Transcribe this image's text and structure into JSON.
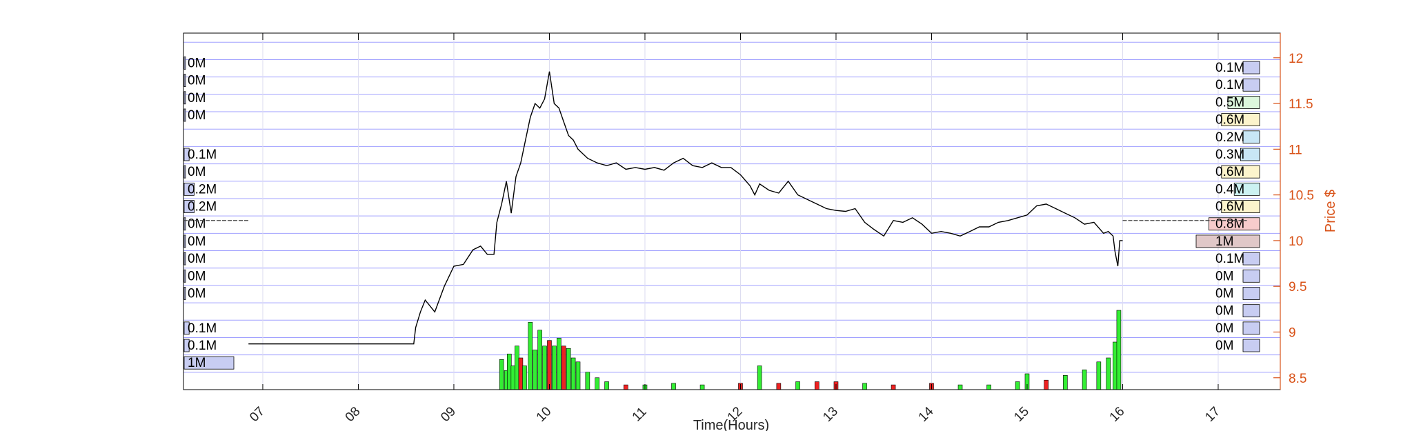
{
  "chart_data": {
    "type": "line",
    "xlabel": "Time(Hours)",
    "ylabel": "Price $",
    "xlim": [
      6.17,
      17.65
    ],
    "ylim": [
      8.37,
      12.27
    ],
    "x_ticks": [
      "07",
      "08",
      "09",
      "10",
      "11",
      "12",
      "13",
      "14",
      "15",
      "16",
      "17"
    ],
    "y_ticks": [
      "8.5",
      "9",
      "9.5",
      "10",
      "10.5",
      "11",
      "11.5",
      "12"
    ],
    "colors": {
      "price_line": "#000000",
      "axis_right": "#d95319",
      "band_lines": "#a0a0ff",
      "grid": "#dcdcf0",
      "volume_up": "#33ee33",
      "volume_down": "#ee2222",
      "profile_default": "#c8cdf2"
    },
    "series": [
      {
        "name": "",
        "x": [
          6.85,
          8.58,
          8.6,
          8.65,
          8.7,
          8.8,
          8.9,
          9.0,
          9.1,
          9.2,
          9.28,
          9.35,
          9.42,
          9.45,
          9.5,
          9.55,
          9.6,
          9.65,
          9.7,
          9.75,
          9.8,
          9.85,
          9.9,
          9.95,
          10.0,
          10.05,
          10.1,
          10.15,
          10.2,
          10.25,
          10.3,
          10.4,
          10.5,
          10.6,
          10.7,
          10.8,
          10.9,
          11.0,
          11.1,
          11.2,
          11.3,
          11.4,
          11.5,
          11.6,
          11.7,
          11.8,
          11.9,
          12.0,
          12.1,
          12.15,
          12.2,
          12.3,
          12.4,
          12.5,
          12.6,
          12.7,
          12.8,
          12.9,
          13.0,
          13.1,
          13.2,
          13.3,
          13.4,
          13.5,
          13.6,
          13.7,
          13.8,
          13.9,
          14.0,
          14.1,
          14.2,
          14.3,
          14.4,
          14.5,
          14.6,
          14.7,
          14.8,
          14.9,
          15.0,
          15.1,
          15.2,
          15.3,
          15.4,
          15.5,
          15.6,
          15.7,
          15.8,
          15.85,
          15.9,
          15.92,
          15.95,
          15.97,
          16.0
        ],
        "values": [
          8.87,
          8.87,
          9.05,
          9.22,
          9.35,
          9.22,
          9.5,
          9.72,
          9.74,
          9.9,
          9.94,
          9.85,
          9.85,
          10.2,
          10.4,
          10.65,
          10.3,
          10.7,
          10.85,
          11.1,
          11.35,
          11.5,
          11.45,
          11.55,
          11.85,
          11.5,
          11.45,
          11.3,
          11.15,
          11.1,
          11.0,
          10.9,
          10.85,
          10.82,
          10.85,
          10.78,
          10.8,
          10.78,
          10.8,
          10.77,
          10.85,
          10.9,
          10.82,
          10.8,
          10.85,
          10.8,
          10.8,
          10.72,
          10.6,
          10.5,
          10.62,
          10.55,
          10.52,
          10.65,
          10.5,
          10.45,
          10.4,
          10.35,
          10.33,
          10.32,
          10.35,
          10.2,
          10.12,
          10.05,
          10.22,
          10.2,
          10.25,
          10.18,
          10.08,
          10.1,
          10.08,
          10.05,
          10.1,
          10.15,
          10.15,
          10.2,
          10.22,
          10.25,
          10.28,
          10.38,
          10.4,
          10.35,
          10.3,
          10.25,
          10.18,
          10.2,
          10.08,
          10.1,
          10.05,
          9.88,
          9.72,
          10.0,
          10.0
        ]
      }
    ],
    "reference_lines": [
      {
        "y": 10.22,
        "x_from": 6.17,
        "x_to": 6.85
      },
      {
        "y": 10.22,
        "x_from": 16.0,
        "x_to": 17.3
      }
    ],
    "volume_bars": [
      {
        "x": 9.5,
        "v": 0.38,
        "up": true
      },
      {
        "x": 9.55,
        "v": 0.24,
        "up": true
      },
      {
        "x": 9.58,
        "v": 0.45,
        "up": true
      },
      {
        "x": 9.62,
        "v": 0.3,
        "up": true
      },
      {
        "x": 9.66,
        "v": 0.55,
        "up": true
      },
      {
        "x": 9.7,
        "v": 0.4,
        "up": false
      },
      {
        "x": 9.74,
        "v": 0.3,
        "up": true
      },
      {
        "x": 9.8,
        "v": 0.85,
        "up": true
      },
      {
        "x": 9.85,
        "v": 0.5,
        "up": true
      },
      {
        "x": 9.9,
        "v": 0.75,
        "up": true
      },
      {
        "x": 9.95,
        "v": 0.55,
        "up": true
      },
      {
        "x": 10.0,
        "v": 0.62,
        "up": false
      },
      {
        "x": 10.05,
        "v": 0.55,
        "up": true
      },
      {
        "x": 10.1,
        "v": 0.65,
        "up": true
      },
      {
        "x": 10.15,
        "v": 0.55,
        "up": false
      },
      {
        "x": 10.2,
        "v": 0.52,
        "up": true
      },
      {
        "x": 10.25,
        "v": 0.4,
        "up": true
      },
      {
        "x": 10.3,
        "v": 0.35,
        "up": true
      },
      {
        "x": 10.4,
        "v": 0.22,
        "up": true
      },
      {
        "x": 10.5,
        "v": 0.15,
        "up": true
      },
      {
        "x": 10.6,
        "v": 0.1,
        "up": true
      },
      {
        "x": 10.8,
        "v": 0.06,
        "up": false
      },
      {
        "x": 11.0,
        "v": 0.06,
        "up": true
      },
      {
        "x": 11.3,
        "v": 0.08,
        "up": true
      },
      {
        "x": 11.6,
        "v": 0.06,
        "up": true
      },
      {
        "x": 12.0,
        "v": 0.08,
        "up": false
      },
      {
        "x": 12.2,
        "v": 0.3,
        "up": true
      },
      {
        "x": 12.4,
        "v": 0.08,
        "up": false
      },
      {
        "x": 12.6,
        "v": 0.1,
        "up": true
      },
      {
        "x": 12.8,
        "v": 0.1,
        "up": false
      },
      {
        "x": 13.0,
        "v": 0.1,
        "up": false
      },
      {
        "x": 13.3,
        "v": 0.08,
        "up": true
      },
      {
        "x": 13.6,
        "v": 0.06,
        "up": false
      },
      {
        "x": 14.0,
        "v": 0.08,
        "up": false
      },
      {
        "x": 14.3,
        "v": 0.06,
        "up": true
      },
      {
        "x": 14.6,
        "v": 0.06,
        "up": true
      },
      {
        "x": 14.9,
        "v": 0.1,
        "up": true
      },
      {
        "x": 15.0,
        "v": 0.2,
        "up": true
      },
      {
        "x": 15.2,
        "v": 0.12,
        "up": false
      },
      {
        "x": 15.4,
        "v": 0.18,
        "up": true
      },
      {
        "x": 15.6,
        "v": 0.25,
        "up": true
      },
      {
        "x": 15.75,
        "v": 0.35,
        "up": true
      },
      {
        "x": 15.85,
        "v": 0.4,
        "up": true
      },
      {
        "x": 15.92,
        "v": 0.6,
        "up": true
      },
      {
        "x": 15.96,
        "v": 1.0,
        "up": true
      }
    ],
    "volume_left": [
      {
        "price": 11.95,
        "label": "0M",
        "value": 0.0
      },
      {
        "price": 11.76,
        "label": "0M",
        "value": 0.0
      },
      {
        "price": 11.57,
        "label": "0M",
        "value": 0.0
      },
      {
        "price": 11.38,
        "label": "0M",
        "value": 0.0
      },
      {
        "price": 10.95,
        "label": "0.1M",
        "value": 0.1
      },
      {
        "price": 10.76,
        "label": "0M",
        "value": 0.0
      },
      {
        "price": 10.57,
        "label": "0.2M",
        "value": 0.2
      },
      {
        "price": 10.38,
        "label": "0.2M",
        "value": 0.2
      },
      {
        "price": 10.19,
        "label": "0M",
        "value": 0.0
      },
      {
        "price": 10.0,
        "label": "0M",
        "value": 0.0
      },
      {
        "price": 9.81,
        "label": "0M",
        "value": 0.0
      },
      {
        "price": 9.62,
        "label": "0M",
        "value": 0.0
      },
      {
        "price": 9.43,
        "label": "0M",
        "value": 0.0
      },
      {
        "price": 9.05,
        "label": "0.1M",
        "value": 0.1
      },
      {
        "price": 8.86,
        "label": "0.1M",
        "value": 0.1
      },
      {
        "price": 8.67,
        "label": "1M",
        "value": 1.0
      }
    ],
    "volume_right": [
      {
        "price": 11.9,
        "label": "0.1M",
        "value": 0.1,
        "color": "#c8cdf2"
      },
      {
        "price": 11.71,
        "label": "0.1M",
        "value": 0.1,
        "color": "#c8cdf2"
      },
      {
        "price": 11.52,
        "label": "0.5M",
        "value": 0.5,
        "color": "#ddf7dd"
      },
      {
        "price": 11.33,
        "label": "0.6M",
        "value": 0.6,
        "color": "#fcf4cc"
      },
      {
        "price": 11.14,
        "label": "0.2M",
        "value": 0.2,
        "color": "#c8e6f5"
      },
      {
        "price": 10.95,
        "label": "0.3M",
        "value": 0.3,
        "color": "#c8e6f5"
      },
      {
        "price": 10.76,
        "label": "0.6M",
        "value": 0.6,
        "color": "#fcf4cc"
      },
      {
        "price": 10.57,
        "label": "0.4M",
        "value": 0.4,
        "color": "#ccf2f2"
      },
      {
        "price": 10.38,
        "label": "0.6M",
        "value": 0.6,
        "color": "#fcf4cc"
      },
      {
        "price": 10.19,
        "label": "0.8M",
        "value": 0.8,
        "color": "#f7cccc"
      },
      {
        "price": 10.0,
        "label": "1M",
        "value": 1.0,
        "color": "#e0c8c8"
      },
      {
        "price": 9.81,
        "label": "0.1M",
        "value": 0.1,
        "color": "#c8cdf2"
      },
      {
        "price": 9.62,
        "label": "0M",
        "value": 0.0,
        "color": "#c8cdf2"
      },
      {
        "price": 9.43,
        "label": "0M",
        "value": 0.0,
        "color": "#c8cdf2"
      },
      {
        "price": 9.24,
        "label": "0M",
        "value": 0.0,
        "color": "#c8cdf2"
      },
      {
        "price": 9.05,
        "label": "0M",
        "value": 0.0,
        "color": "#c8cdf2"
      },
      {
        "price": 8.86,
        "label": "0M",
        "value": 0.0,
        "color": "#c8cdf2"
      }
    ],
    "band_prices": [
      12.17,
      11.98,
      11.79,
      11.6,
      11.41,
      11.22,
      11.03,
      10.84,
      10.65,
      10.46,
      10.27,
      10.08,
      9.89,
      9.7,
      9.51,
      9.32,
      9.13,
      8.94,
      8.75,
      8.56
    ],
    "grid": true
  }
}
